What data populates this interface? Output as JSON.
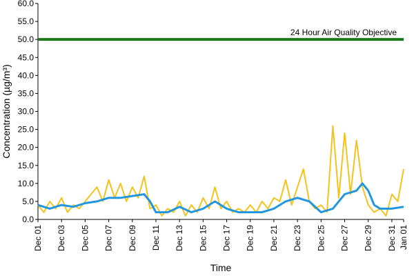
{
  "chart_data": {
    "type": "line",
    "xlabel": "Time",
    "ylabel": "Concentration (µg/m³)",
    "ylim": [
      0,
      60
    ],
    "yticks": [
      "0.0",
      "5.0",
      "10.0",
      "15.0",
      "20.0",
      "25.0",
      "30.0",
      "35.0",
      "40.0",
      "45.0",
      "50.0",
      "55.0",
      "60.0"
    ],
    "xlim": [
      "2022-12-01",
      "2023-01-01"
    ],
    "xticks": [
      "Dec 01",
      "Dec 03",
      "Dec 05",
      "Dec 07",
      "Dec 09",
      "Dec 11",
      "Dec 13",
      "Dec 15",
      "Dec 17",
      "Dec 19",
      "Dec 21",
      "Dec 23",
      "Dec 25",
      "Dec 27",
      "Dec 29",
      "Dec 31",
      "Jan 01"
    ],
    "grid": false,
    "annotation": "24 Hour Air Quality Objective",
    "objective_value": 50,
    "colors": {
      "hourly": "#f5c21b",
      "rolling": "#2196e0",
      "objective": "#1a7a1a"
    },
    "series": [
      {
        "values_desc": "hourly",
        "points": [
          [
            "2022-12-01",
            4
          ],
          [
            "2022-12-01T12",
            2
          ],
          [
            "2022-12-02",
            5
          ],
          [
            "2022-12-02T12",
            3
          ],
          [
            "2022-12-03",
            6
          ],
          [
            "2022-12-03T12",
            2
          ],
          [
            "2022-12-04",
            4
          ],
          [
            "2022-12-04T12",
            3
          ],
          [
            "2022-12-05",
            5
          ],
          [
            "2022-12-05T12",
            7
          ],
          [
            "2022-12-06",
            9
          ],
          [
            "2022-12-06T12",
            5
          ],
          [
            "2022-12-07",
            11
          ],
          [
            "2022-12-07T12",
            6
          ],
          [
            "2022-12-08",
            10
          ],
          [
            "2022-12-08T12",
            5
          ],
          [
            "2022-12-09",
            9
          ],
          [
            "2022-12-09T12",
            6
          ],
          [
            "2022-12-10",
            12
          ],
          [
            "2022-12-10T12",
            3
          ],
          [
            "2022-12-11",
            4
          ],
          [
            "2022-12-11T12",
            1
          ],
          [
            "2022-12-12",
            3
          ],
          [
            "2022-12-12T12",
            2
          ],
          [
            "2022-12-13",
            5
          ],
          [
            "2022-12-13T12",
            1
          ],
          [
            "2022-12-14",
            4
          ],
          [
            "2022-12-14T12",
            2
          ],
          [
            "2022-12-15",
            6
          ],
          [
            "2022-12-15T12",
            3
          ],
          [
            "2022-12-16",
            9
          ],
          [
            "2022-12-16T12",
            3
          ],
          [
            "2022-12-17",
            5
          ],
          [
            "2022-12-17T12",
            2
          ],
          [
            "2022-12-18",
            3
          ],
          [
            "2022-12-18T12",
            2
          ],
          [
            "2022-12-19",
            4
          ],
          [
            "2022-12-19T12",
            2
          ],
          [
            "2022-12-20",
            5
          ],
          [
            "2022-12-20T12",
            3
          ],
          [
            "2022-12-21",
            6
          ],
          [
            "2022-12-21T12",
            5
          ],
          [
            "2022-12-22",
            11
          ],
          [
            "2022-12-22T12",
            4
          ],
          [
            "2022-12-23",
            9
          ],
          [
            "2022-12-23T12",
            14
          ],
          [
            "2022-12-24",
            5
          ],
          [
            "2022-12-24T12",
            3
          ],
          [
            "2022-12-25",
            4
          ],
          [
            "2022-12-25T12",
            2
          ],
          [
            "2022-12-26",
            26
          ],
          [
            "2022-12-26T12",
            6
          ],
          [
            "2022-12-27",
            24
          ],
          [
            "2022-12-27T12",
            7
          ],
          [
            "2022-12-28",
            22
          ],
          [
            "2022-12-28T12",
            9
          ],
          [
            "2022-12-29",
            4
          ],
          [
            "2022-12-29T12",
            2
          ],
          [
            "2022-12-30",
            3
          ],
          [
            "2022-12-30T12",
            1
          ],
          [
            "2022-12-31",
            7
          ],
          [
            "2022-12-31T12",
            5
          ],
          [
            "2023-01-01",
            14
          ]
        ]
      },
      {
        "values_desc": "rolling",
        "points": [
          [
            "2022-12-01",
            4
          ],
          [
            "2022-12-02",
            3
          ],
          [
            "2022-12-03",
            4
          ],
          [
            "2022-12-04",
            3.5
          ],
          [
            "2022-12-05",
            4.5
          ],
          [
            "2022-12-06",
            5
          ],
          [
            "2022-12-07",
            6
          ],
          [
            "2022-12-08",
            6
          ],
          [
            "2022-12-09",
            6.5
          ],
          [
            "2022-12-10",
            7
          ],
          [
            "2022-12-10T12",
            5
          ],
          [
            "2022-12-11",
            2
          ],
          [
            "2022-12-12",
            2
          ],
          [
            "2022-12-13",
            3.5
          ],
          [
            "2022-12-14",
            2
          ],
          [
            "2022-12-15",
            3
          ],
          [
            "2022-12-16",
            5
          ],
          [
            "2022-12-17",
            3
          ],
          [
            "2022-12-18",
            2
          ],
          [
            "2022-12-19",
            2
          ],
          [
            "2022-12-20",
            2
          ],
          [
            "2022-12-21",
            3
          ],
          [
            "2022-12-22",
            5
          ],
          [
            "2022-12-23",
            6
          ],
          [
            "2022-12-24",
            5
          ],
          [
            "2022-12-25",
            2
          ],
          [
            "2022-12-26",
            3
          ],
          [
            "2022-12-27",
            7
          ],
          [
            "2022-12-28",
            8
          ],
          [
            "2022-12-28T12",
            10
          ],
          [
            "2022-12-29",
            8
          ],
          [
            "2022-12-29T12",
            4
          ],
          [
            "2022-12-30",
            3
          ],
          [
            "2022-12-31",
            3
          ],
          [
            "2023-01-01",
            3.5
          ]
        ]
      }
    ]
  }
}
